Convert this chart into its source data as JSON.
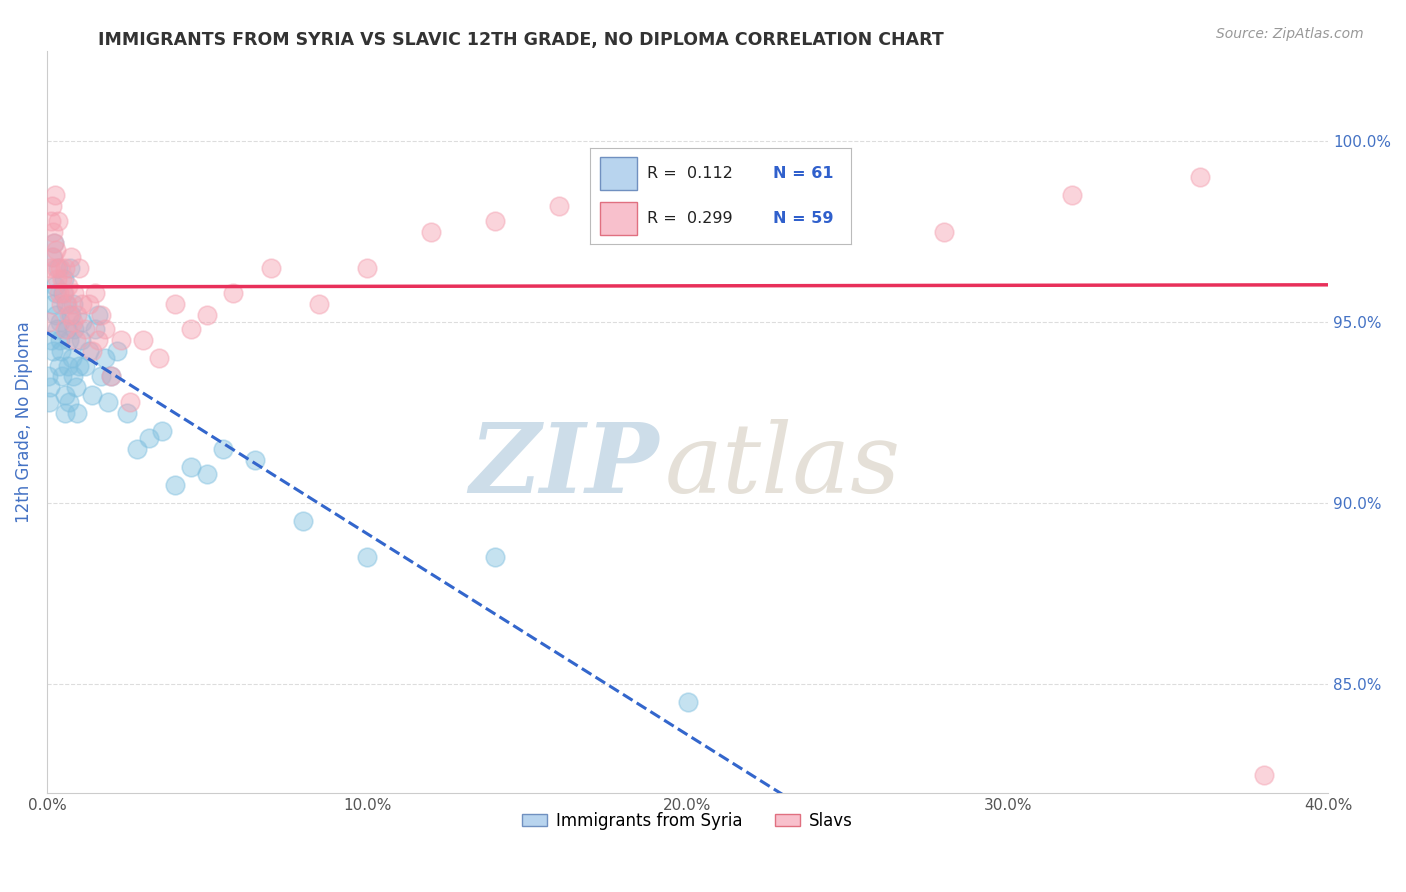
{
  "title": "IMMIGRANTS FROM SYRIA VS SLAVIC 12TH GRADE, NO DIPLOMA CORRELATION CHART",
  "source": "Source: ZipAtlas.com",
  "ylabel": "12th Grade, No Diploma",
  "xlim": [
    0.0,
    40.0
  ],
  "ylim": [
    82.0,
    102.5
  ],
  "yticks": [
    85.0,
    90.0,
    95.0,
    100.0
  ],
  "ytick_labels": [
    "85.0%",
    "90.0%",
    "95.0%",
    "100.0%"
  ],
  "xticks": [
    0.0,
    10.0,
    20.0,
    30.0,
    40.0
  ],
  "xtick_labels": [
    "0.0%",
    "10.0%",
    "20.0%",
    "30.0%",
    "40.0%"
  ],
  "legend_r1": "R =  0.112",
  "legend_n1": "N = 61",
  "legend_r2": "R =  0.299",
  "legend_n2": "N = 59",
  "series1_color": "#7fbfdf",
  "series2_color": "#f4a0b0",
  "series1_label": "Immigrants from Syria",
  "series2_label": "Slavs",
  "background_color": "#ffffff",
  "grid_color": "#dddddd",
  "title_color": "#333333",
  "axis_label_color": "#4472c4",
  "reg1_color": "#3366cc",
  "reg2_color": "#e8305a",
  "syria_x": [
    0.05,
    0.08,
    0.1,
    0.12,
    0.15,
    0.18,
    0.2,
    0.22,
    0.25,
    0.28,
    0.3,
    0.32,
    0.35,
    0.38,
    0.4,
    0.42,
    0.45,
    0.48,
    0.5,
    0.52,
    0.55,
    0.58,
    0.6,
    0.62,
    0.65,
    0.68,
    0.7,
    0.72,
    0.75,
    0.78,
    0.8,
    0.82,
    0.85,
    0.9,
    0.95,
    1.0,
    1.05,
    1.1,
    1.2,
    1.3,
    1.4,
    1.5,
    1.6,
    1.7,
    1.8,
    1.9,
    2.0,
    2.2,
    2.5,
    2.8,
    3.2,
    3.6,
    4.0,
    4.5,
    5.0,
    5.5,
    6.5,
    8.0,
    10.0,
    14.0,
    20.0
  ],
  "syria_y": [
    93.5,
    92.8,
    93.2,
    94.5,
    96.8,
    94.2,
    95.5,
    97.2,
    96.0,
    95.8,
    95.2,
    94.8,
    96.5,
    93.8,
    94.5,
    95.0,
    94.2,
    93.5,
    95.8,
    96.2,
    93.0,
    92.5,
    95.5,
    94.8,
    93.8,
    92.8,
    94.5,
    96.5,
    95.2,
    94.0,
    93.5,
    95.5,
    94.8,
    93.2,
    92.5,
    93.8,
    94.5,
    95.0,
    93.8,
    94.2,
    93.0,
    94.8,
    95.2,
    93.5,
    94.0,
    92.8,
    93.5,
    94.2,
    92.5,
    91.5,
    91.8,
    92.0,
    90.5,
    91.0,
    90.8,
    91.5,
    91.2,
    89.5,
    88.5,
    88.5,
    84.5
  ],
  "slavs_x": [
    0.06,
    0.1,
    0.12,
    0.15,
    0.18,
    0.2,
    0.22,
    0.25,
    0.28,
    0.3,
    0.32,
    0.35,
    0.38,
    0.42,
    0.45,
    0.48,
    0.52,
    0.55,
    0.58,
    0.62,
    0.65,
    0.7,
    0.75,
    0.8,
    0.85,
    0.9,
    0.95,
    1.0,
    1.1,
    1.2,
    1.3,
    1.4,
    1.5,
    1.6,
    1.7,
    1.8,
    2.0,
    2.3,
    2.6,
    3.0,
    3.5,
    4.0,
    4.5,
    5.0,
    5.8,
    7.0,
    8.5,
    10.0,
    12.0,
    14.0,
    16.0,
    18.0,
    20.0,
    22.0,
    24.0,
    28.0,
    32.0,
    36.0,
    38.0
  ],
  "slavs_y": [
    95.0,
    96.5,
    97.8,
    98.2,
    97.5,
    96.8,
    97.2,
    98.5,
    96.5,
    97.0,
    96.2,
    97.8,
    95.8,
    96.5,
    95.5,
    96.2,
    95.8,
    96.5,
    94.8,
    95.5,
    96.0,
    95.2,
    96.8,
    95.0,
    95.8,
    94.5,
    95.2,
    96.5,
    95.5,
    94.8,
    95.5,
    94.2,
    95.8,
    94.5,
    95.2,
    94.8,
    93.5,
    94.5,
    92.8,
    94.5,
    94.0,
    95.5,
    94.8,
    95.2,
    95.8,
    96.5,
    95.5,
    96.5,
    97.5,
    97.8,
    98.2,
    98.5,
    99.2,
    98.8,
    99.5,
    97.5,
    98.5,
    99.0,
    82.5
  ]
}
